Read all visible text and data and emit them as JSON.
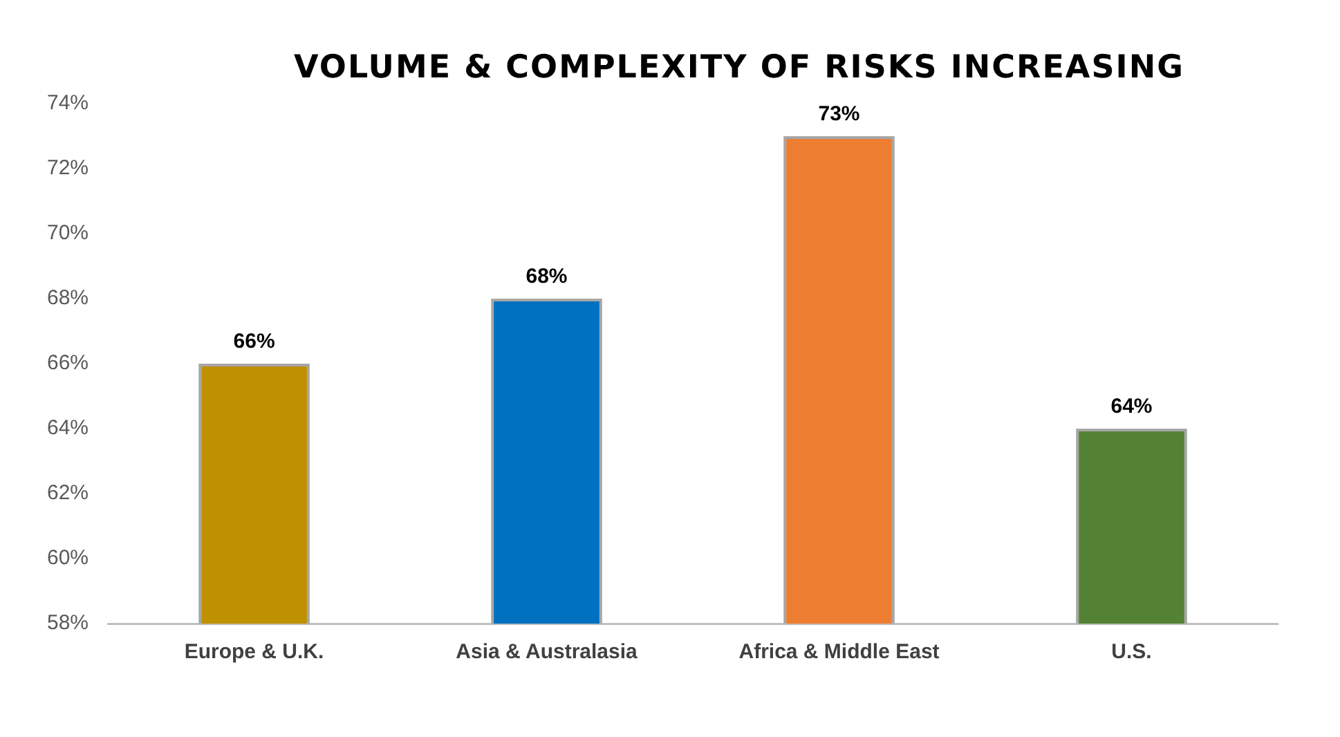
{
  "chart_data": {
    "type": "bar",
    "title": "VOLUME & COMPLEXITY OF RISKS INCREASING",
    "categories": [
      "Europe & U.K.",
      "Asia & Australasia",
      "Africa & Middle East",
      "U.S."
    ],
    "values": [
      66,
      68,
      73,
      64
    ],
    "colors": [
      "#bf9000",
      "#0070c0",
      "#ed7d31",
      "#548235"
    ],
    "ylim": [
      58,
      74
    ],
    "yticks": [
      {
        "value": 58,
        "label": "58%"
      },
      {
        "value": 60,
        "label": "60%"
      },
      {
        "value": 62,
        "label": "62%"
      },
      {
        "value": 64,
        "label": "64%"
      },
      {
        "value": 66,
        "label": "66%"
      },
      {
        "value": 68,
        "label": "68%"
      },
      {
        "value": 70,
        "label": "70%"
      },
      {
        "value": 72,
        "label": "72%"
      },
      {
        "value": 74,
        "label": "74%"
      }
    ],
    "value_labels": [
      "66%",
      "68%",
      "73%",
      "64%"
    ],
    "grid": false,
    "legend": false
  }
}
